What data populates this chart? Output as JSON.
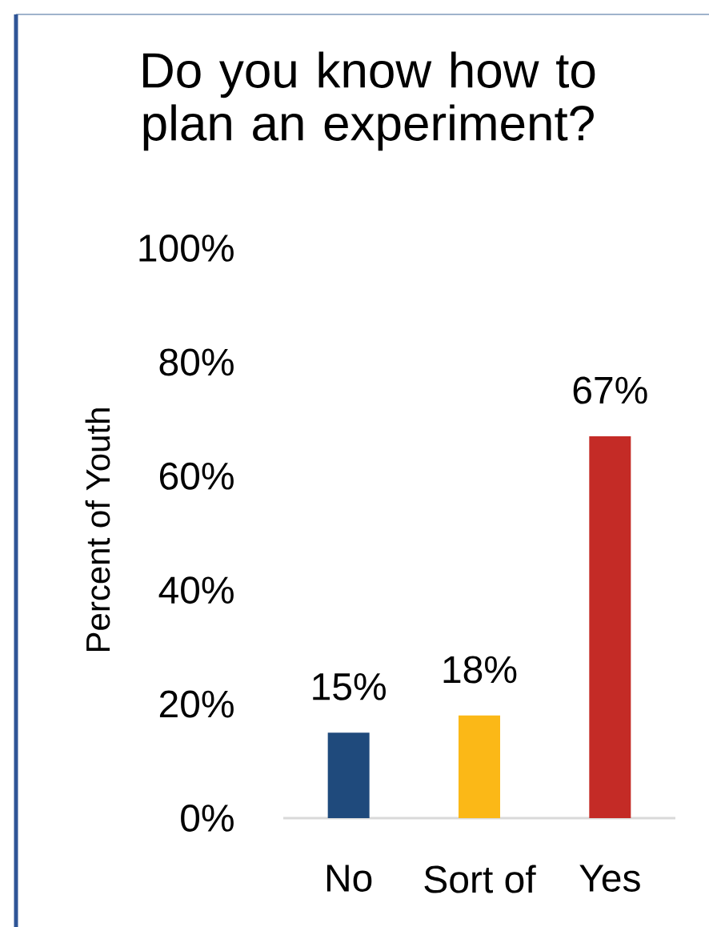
{
  "chart_data": {
    "type": "bar",
    "title": "Do you know how to plan an experiment?",
    "ylabel": "Percent of Youth",
    "categories": [
      "No",
      "Sort of",
      "Yes"
    ],
    "values": [
      15,
      18,
      67
    ],
    "colors": [
      "#1f4a7c",
      "#fbb817",
      "#c42b26"
    ],
    "value_labels": [
      "15%",
      "18%",
      "67%"
    ],
    "ylim": [
      0,
      100
    ],
    "yticks": [
      {
        "value": 0,
        "label": "0%"
      },
      {
        "value": 20,
        "label": "20%"
      },
      {
        "value": 40,
        "label": "40%"
      },
      {
        "value": 60,
        "label": "60%"
      },
      {
        "value": 80,
        "label": "80%"
      },
      {
        "value": 100,
        "label": "100%"
      }
    ]
  }
}
